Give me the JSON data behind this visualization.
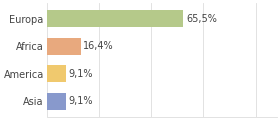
{
  "categories": [
    "Europa",
    "Africa",
    "America",
    "Asia"
  ],
  "values": [
    65.5,
    16.4,
    9.1,
    9.1
  ],
  "labels": [
    "65,5%",
    "16,4%",
    "9,1%",
    "9,1%"
  ],
  "bar_colors": [
    "#b5c98a",
    "#e8a97e",
    "#f0c96e",
    "#8899cc"
  ],
  "background_color": "#ffffff",
  "plot_bg_color": "#ffffff",
  "xlim": [
    0,
    110
  ],
  "bar_height": 0.62,
  "label_fontsize": 7.0,
  "tick_fontsize": 7.0,
  "grid_color": "#dddddd",
  "grid_positions": [
    0,
    25,
    50,
    75,
    100
  ]
}
